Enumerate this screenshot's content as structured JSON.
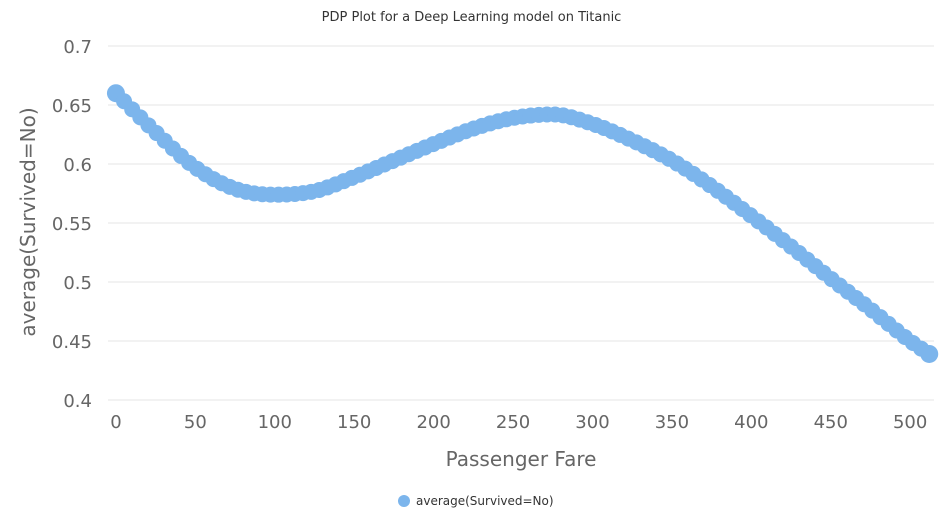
{
  "chart_data": {
    "type": "scatter",
    "title": "PDP Plot for a Deep Learning model on Titanic",
    "xlabel": "Passenger Fare",
    "ylabel": "average(Survived=No)",
    "xlim": [
      -5,
      515
    ],
    "ylim": [
      0.4,
      0.7
    ],
    "xticks": [
      0,
      50,
      100,
      150,
      200,
      250,
      300,
      350,
      400,
      450,
      500
    ],
    "yticks": [
      0.4,
      0.45,
      0.5,
      0.55,
      0.6,
      0.65,
      0.7
    ],
    "ytick_labels": [
      "0.4",
      "0.45",
      "0.5",
      "0.55",
      "0.6",
      "0.65",
      "0.7"
    ],
    "grid": "horizontal",
    "legend_position": "bottom-center",
    "series": [
      {
        "name": "average(Survived=No)",
        "color": "#7cb5ec",
        "x": [
          0,
          25,
          50,
          75,
          100,
          125,
          150,
          175,
          200,
          225,
          250,
          275,
          300,
          325,
          350,
          375,
          400,
          425,
          450,
          475,
          500,
          512
        ],
        "y": [
          0.66,
          0.627,
          0.597,
          0.579,
          0.574,
          0.577,
          0.589,
          0.603,
          0.617,
          0.63,
          0.639,
          0.642,
          0.634,
          0.62,
          0.603,
          0.581,
          0.556,
          0.53,
          0.503,
          0.477,
          0.45,
          0.439
        ]
      }
    ]
  }
}
